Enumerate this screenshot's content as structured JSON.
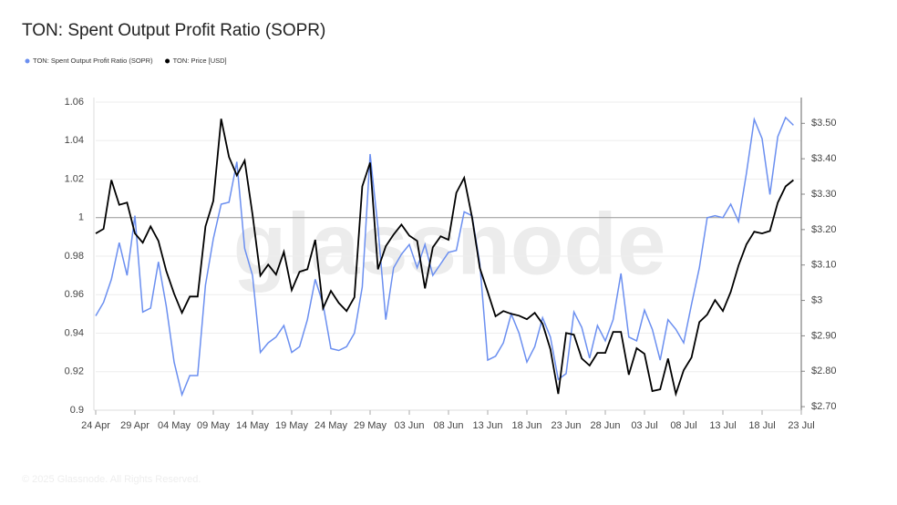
{
  "chart_data": {
    "type": "line",
    "title": "TON: Spent Output Profit Ratio (SOPR)",
    "watermark": "glassnode",
    "footer": "© 2025 Glassnode. All Rights Reserved.",
    "categories": [
      "24 Apr",
      null,
      null,
      null,
      null,
      "29 Apr",
      null,
      null,
      null,
      null,
      "04 May",
      null,
      null,
      null,
      null,
      "09 May",
      null,
      null,
      null,
      null,
      "14 May",
      null,
      null,
      null,
      null,
      "19 May",
      null,
      null,
      null,
      null,
      "24 May",
      null,
      null,
      null,
      null,
      "29 May",
      null,
      null,
      null,
      null,
      "03 Jun",
      null,
      null,
      null,
      null,
      "08 Jun",
      null,
      null,
      null,
      null,
      "13 Jun",
      null,
      null,
      null,
      null,
      "18 Jun",
      null,
      null,
      null,
      null,
      "23 Jun",
      null,
      null,
      null,
      null,
      "28 Jun",
      null,
      null,
      null,
      null,
      "03 Jul",
      null,
      null,
      null,
      null,
      "08 Jul",
      null,
      null,
      null,
      null,
      "13 Jul",
      null,
      null,
      null,
      null,
      "18 Jul",
      null,
      null,
      null,
      null,
      "23 Jul"
    ],
    "series": [
      {
        "name": "TON: Spent Output Profit Ratio (SOPR)",
        "color": "#6b8ff0",
        "axis": "y",
        "values": [
          0.949,
          0.956,
          0.968,
          0.987,
          0.97,
          1.001,
          0.951,
          0.953,
          0.977,
          0.954,
          0.925,
          0.908,
          0.918,
          0.918,
          0.965,
          0.989,
          1.007,
          1.008,
          1.029,
          0.984,
          0.97,
          0.93,
          0.935,
          0.938,
          0.944,
          0.93,
          0.933,
          0.947,
          0.968,
          0.955,
          0.932,
          0.931,
          0.933,
          0.94,
          0.964,
          1.033,
          0.995,
          0.947,
          0.974,
          0.981,
          0.986,
          0.974,
          0.986,
          0.97,
          0.976,
          0.982,
          0.983,
          1.003,
          1.001,
          0.976,
          0.926,
          0.928,
          0.935,
          0.95,
          0.94,
          0.925,
          0.933,
          0.948,
          0.938,
          0.916,
          0.919,
          0.951,
          0.943,
          0.927,
          0.944,
          0.936,
          0.947,
          0.971,
          0.938,
          0.936,
          0.952,
          0.942,
          0.926,
          0.947,
          0.942,
          0.935,
          0.955,
          0.974,
          1.0,
          1.001,
          1.0,
          1.007,
          0.998,
          1.023,
          1.051,
          1.041,
          1.012,
          1.042,
          1.052,
          1.048,
          null
        ]
      },
      {
        "name": "TON: Price [USD]",
        "color": "#000000",
        "axis": "y2",
        "values": [
          3.189,
          3.202,
          3.34,
          3.27,
          3.276,
          3.189,
          3.163,
          3.209,
          3.168,
          3.083,
          3.019,
          2.965,
          3.011,
          3.011,
          3.209,
          3.281,
          3.513,
          3.405,
          3.353,
          3.395,
          3.243,
          3.07,
          3.101,
          3.073,
          3.137,
          3.029,
          3.081,
          3.088,
          3.171,
          2.978,
          3.027,
          2.993,
          2.97,
          3.009,
          3.322,
          3.389,
          3.088,
          3.153,
          3.186,
          3.214,
          3.183,
          3.168,
          3.034,
          3.15,
          3.181,
          3.171,
          3.304,
          3.346,
          3.235,
          3.091,
          3.024,
          2.955,
          2.97,
          2.962,
          2.957,
          2.947,
          2.965,
          2.934,
          2.862,
          2.736,
          2.908,
          2.903,
          2.836,
          2.816,
          2.852,
          2.852,
          2.911,
          2.911,
          2.79,
          2.865,
          2.849,
          2.744,
          2.749,
          2.836,
          2.736,
          2.803,
          2.839,
          2.939,
          2.96,
          3.001,
          2.97,
          3.024,
          3.099,
          3.158,
          3.194,
          3.189,
          3.196,
          3.276,
          3.322,
          3.34,
          null
        ]
      }
    ],
    "ylim": [
      0.9,
      1.06
    ],
    "yticks": [
      0.9,
      0.92,
      0.94,
      0.96,
      0.98,
      1,
      1.02,
      1.04,
      1.06
    ],
    "y2lim": [
      2.69,
      3.56
    ],
    "y2ticks": [
      {
        "value": 2.7,
        "label": "$2.70"
      },
      {
        "value": 2.8,
        "label": "$2.80"
      },
      {
        "value": 2.9,
        "label": "$2.90"
      },
      {
        "value": 3,
        "label": "$3"
      },
      {
        "value": 3.1,
        "label": "$3.10"
      },
      {
        "value": 3.2,
        "label": "$3.20"
      },
      {
        "value": 3.3,
        "label": "$3.30"
      },
      {
        "value": 3.4,
        "label": "$3.40"
      },
      {
        "value": 3.5,
        "label": "$3.50"
      }
    ],
    "reference_line": 1,
    "grid": true,
    "legend": "top-left"
  }
}
